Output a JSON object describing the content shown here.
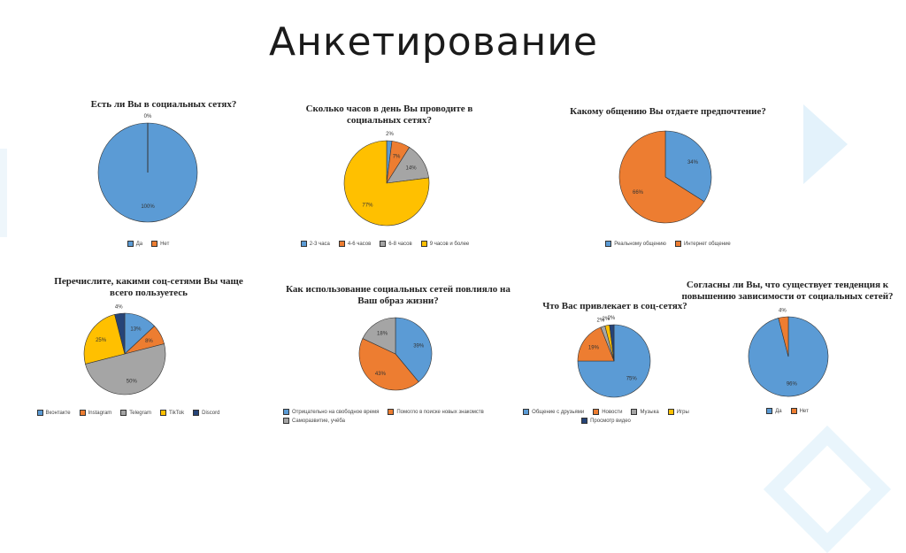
{
  "slide": {
    "title": "Анкетирование"
  },
  "colors": {
    "blue": "#5b9bd5",
    "orange": "#ed7d31",
    "gray": "#a5a5a5",
    "yellow": "#ffc000",
    "darkblue": "#264478",
    "navy": "#1f3864"
  },
  "chart_data": [
    {
      "type": "pie",
      "title": "Есть ли Вы в социальных сетях?",
      "categories": [
        "Да",
        "Нет"
      ],
      "values": [
        100,
        0
      ],
      "labels": [
        "100%",
        "0%"
      ],
      "colors": [
        "#5b9bd5",
        "#ed7d31"
      ],
      "legend": "bottom"
    },
    {
      "type": "pie",
      "title": "Сколько часов в день Вы проводите в социальных сетях?",
      "categories": [
        "2-3 часа",
        "4-6 часов",
        "6-8 часов",
        "9 часов и более"
      ],
      "values": [
        2,
        7,
        14,
        77
      ],
      "labels": [
        "2%",
        "7%",
        "14%",
        "77%"
      ],
      "colors": [
        "#5b9bd5",
        "#ed7d31",
        "#a5a5a5",
        "#ffc000"
      ],
      "legend": "bottom"
    },
    {
      "type": "pie",
      "title": "Какому общению Вы отдаете предпочтение?",
      "categories": [
        "Реальному общению",
        "Интернет общение"
      ],
      "values": [
        34,
        66
      ],
      "labels": [
        "34%",
        "66%"
      ],
      "colors": [
        "#5b9bd5",
        "#ed7d31"
      ],
      "legend": "bottom"
    },
    {
      "type": "pie",
      "title": "Перечислите, какими соц-сетями Вы чаще всего пользуетесь",
      "categories": [
        "Вконтакте",
        "Instagram",
        "Telegram",
        "TikTok",
        "Discord"
      ],
      "values": [
        13,
        8,
        50,
        25,
        4
      ],
      "labels": [
        "13%",
        "8%",
        "50%",
        "25%",
        "4%"
      ],
      "colors": [
        "#5b9bd5",
        "#ed7d31",
        "#a5a5a5",
        "#ffc000",
        "#264478"
      ],
      "legend": "bottom"
    },
    {
      "type": "pie",
      "title": "Как использование социальных сетей повлияло на Ваш образ жизни?",
      "categories": [
        "Отрицательно на свободное время",
        "Помогло в поиске новых знакомств",
        "Саморазвитие, учёба"
      ],
      "values": [
        39,
        43,
        18
      ],
      "labels": [
        "39%",
        "43%",
        "18%"
      ],
      "colors": [
        "#5b9bd5",
        "#ed7d31",
        "#a5a5a5"
      ],
      "legend": "bottom"
    },
    {
      "type": "pie",
      "title": "Что Вас привлекает в соц-сетях?",
      "categories": [
        "Общение с друзьями",
        "Новости",
        "Музыка",
        "Игры",
        "Просмотр видео"
      ],
      "values": [
        75,
        19,
        2,
        2,
        2
      ],
      "labels": [
        "75%",
        "19%",
        "2%",
        "2%",
        "2%"
      ],
      "colors": [
        "#5b9bd5",
        "#ed7d31",
        "#a5a5a5",
        "#ffc000",
        "#264478"
      ],
      "legend": "bottom"
    },
    {
      "type": "pie",
      "title": "Согласны ли Вы, что существует тенденция к повышению зависимости от социальных сетей?",
      "categories": [
        "Да",
        "Нет"
      ],
      "values": [
        96,
        4
      ],
      "labels": [
        "96%",
        "4%"
      ],
      "colors": [
        "#5b9bd5",
        "#ed7d31"
      ],
      "legend": "bottom"
    }
  ]
}
